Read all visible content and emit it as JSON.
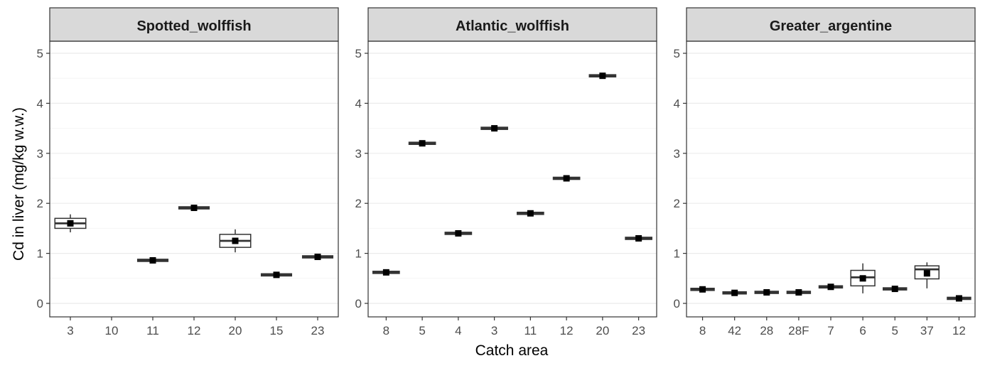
{
  "chart_data": {
    "type": "boxplot",
    "xlabel": "Catch area",
    "ylabel": "Cd in liver (mg/kg w.w.)",
    "ylim": [
      -0.25,
      5.25
    ],
    "yticks": [
      0,
      1,
      2,
      3,
      4,
      5
    ],
    "grid": true,
    "panels": [
      {
        "title": "Spotted_wolffish",
        "categories": [
          "3",
          "10",
          "11",
          "12",
          "20",
          "15",
          "23"
        ],
        "boxes": [
          {
            "category": "3",
            "min": 1.42,
            "q1": 1.5,
            "median": 1.6,
            "q3": 1.7,
            "max": 1.78,
            "mean": 1.6
          },
          {
            "category": "10",
            "min": null,
            "q1": null,
            "median": null,
            "q3": null,
            "max": null,
            "mean": null
          },
          {
            "category": "11",
            "min": 0.86,
            "q1": 0.86,
            "median": 0.86,
            "q3": 0.86,
            "max": 0.86,
            "mean": 0.86
          },
          {
            "category": "12",
            "min": 1.91,
            "q1": 1.91,
            "median": 1.91,
            "q3": 1.91,
            "max": 1.91,
            "mean": 1.91
          },
          {
            "category": "20",
            "min": 1.02,
            "q1": 1.12,
            "median": 1.25,
            "q3": 1.38,
            "max": 1.48,
            "mean": 1.25
          },
          {
            "category": "15",
            "min": 0.57,
            "q1": 0.57,
            "median": 0.57,
            "q3": 0.57,
            "max": 0.57,
            "mean": 0.57
          },
          {
            "category": "23",
            "min": 0.93,
            "q1": 0.93,
            "median": 0.93,
            "q3": 0.93,
            "max": 0.93,
            "mean": 0.93
          }
        ]
      },
      {
        "title": "Atlantic_wolffish",
        "categories": [
          "8",
          "5",
          "4",
          "3",
          "11",
          "12",
          "20",
          "23"
        ],
        "boxes": [
          {
            "category": "8",
            "min": 0.62,
            "q1": 0.62,
            "median": 0.62,
            "q3": 0.62,
            "max": 0.62,
            "mean": 0.62
          },
          {
            "category": "5",
            "min": 3.2,
            "q1": 3.2,
            "median": 3.2,
            "q3": 3.2,
            "max": 3.2,
            "mean": 3.2
          },
          {
            "category": "4",
            "min": 1.4,
            "q1": 1.4,
            "median": 1.4,
            "q3": 1.4,
            "max": 1.4,
            "mean": 1.4
          },
          {
            "category": "3",
            "min": 3.5,
            "q1": 3.5,
            "median": 3.5,
            "q3": 3.5,
            "max": 3.5,
            "mean": 3.5
          },
          {
            "category": "11",
            "min": 1.8,
            "q1": 1.8,
            "median": 1.8,
            "q3": 1.8,
            "max": 1.8,
            "mean": 1.8
          },
          {
            "category": "12",
            "min": 2.5,
            "q1": 2.5,
            "median": 2.5,
            "q3": 2.5,
            "max": 2.5,
            "mean": 2.5
          },
          {
            "category": "20",
            "min": 4.55,
            "q1": 4.55,
            "median": 4.55,
            "q3": 4.55,
            "max": 4.55,
            "mean": 4.55
          },
          {
            "category": "23",
            "min": 1.3,
            "q1": 1.3,
            "median": 1.3,
            "q3": 1.3,
            "max": 1.3,
            "mean": 1.3
          }
        ]
      },
      {
        "title": "Greater_argentine",
        "categories": [
          "8",
          "42",
          "28",
          "28F",
          "7",
          "6",
          "5",
          "37",
          "12"
        ],
        "boxes": [
          {
            "category": "8",
            "min": 0.28,
            "q1": 0.28,
            "median": 0.28,
            "q3": 0.28,
            "max": 0.28,
            "mean": 0.28
          },
          {
            "category": "42",
            "min": 0.21,
            "q1": 0.21,
            "median": 0.21,
            "q3": 0.21,
            "max": 0.21,
            "mean": 0.21
          },
          {
            "category": "28",
            "min": 0.22,
            "q1": 0.22,
            "median": 0.22,
            "q3": 0.22,
            "max": 0.22,
            "mean": 0.22
          },
          {
            "category": "28F",
            "min": 0.22,
            "q1": 0.22,
            "median": 0.22,
            "q3": 0.22,
            "max": 0.22,
            "mean": 0.22
          },
          {
            "category": "7",
            "min": 0.33,
            "q1": 0.33,
            "median": 0.33,
            "q3": 0.33,
            "max": 0.33,
            "mean": 0.33
          },
          {
            "category": "6",
            "min": 0.2,
            "q1": 0.35,
            "median": 0.52,
            "q3": 0.66,
            "max": 0.8,
            "mean": 0.5
          },
          {
            "category": "5",
            "min": 0.29,
            "q1": 0.29,
            "median": 0.29,
            "q3": 0.29,
            "max": 0.29,
            "mean": 0.29
          },
          {
            "category": "37",
            "min": 0.3,
            "q1": 0.49,
            "median": 0.68,
            "q3": 0.75,
            "max": 0.82,
            "mean": 0.6
          },
          {
            "category": "12",
            "min": 0.1,
            "q1": 0.1,
            "median": 0.1,
            "q3": 0.1,
            "max": 0.1,
            "mean": 0.1
          }
        ]
      }
    ],
    "colors": {
      "strip_fill": "#d9d9d9",
      "frame": "#333333",
      "grid_major": "#ebebeb",
      "grid_minor": "#f5f5f5",
      "box_line": "#333333",
      "mean_marker": "#000000"
    }
  }
}
